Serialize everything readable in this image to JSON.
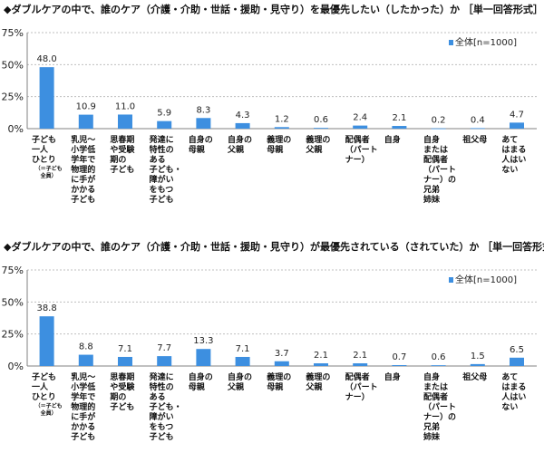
{
  "colors": {
    "bar": "#3d8fe0",
    "grid": "#bfbfbf",
    "axis": "#808080"
  },
  "chart_data": [
    {
      "type": "bar",
      "title": "◆ダブルケアの中で、誰のケア（介護・介助・世話・援助・見守り）を最優先したい（したかった）か ［単一回答形式］",
      "categories": [
        "子ども\n一人\nひとり",
        "乳児～\n小学低\n学年で\n物理的\nに手が\nかかる\n子ども",
        "思春期\nや受験\n期の\n子ども",
        "発達に\n特性の\nある\n子ども・\n障がい\nをもつ\n子ども",
        "自身の\n母親",
        "自身の\n父親",
        "義理の\n母親",
        "義理の\n父親",
        "配偶者\n（パート\nナー）",
        "自身",
        "自身\nまたは\n配偶者\n（パート\nナー）の\n兄弟\n姉妹",
        "祖父母",
        "あて\nはまる\n人はい\nない"
      ],
      "category_note": "（＝子ども\n全員）",
      "series": [
        {
          "name": "全体[n=1000]",
          "values": [
            48.0,
            10.9,
            11.0,
            5.9,
            8.3,
            4.3,
            1.2,
            0.6,
            2.4,
            2.1,
            0.2,
            0.4,
            4.7
          ]
        }
      ],
      "value_labels": [
        "48.0",
        "10.9",
        "11.0",
        "5.9",
        "8.3",
        "4.3",
        "1.2",
        "0.6",
        "2.4",
        "2.1",
        "0.2",
        "0.4",
        "4.7"
      ],
      "yticks": [
        "75%",
        "50%",
        "25%",
        "0%"
      ],
      "ylim": [
        0,
        75
      ],
      "grid": true,
      "legend": "top-right"
    },
    {
      "type": "bar",
      "title": "◆ダブルケアの中で、誰のケア（介護・介助・世話・援助・見守り）が最優先されている（されていた）か ［単一回答形式］",
      "categories": [
        "子ども\n一人\nひとり",
        "乳児～\n小学低\n学年で\n物理的\nに手が\nかかる\n子ども",
        "思春期\nや受験\n期の\n子ども",
        "発達に\n特性の\nある\n子ども・\n障がい\nをもつ\n子ども",
        "自身の\n母親",
        "自身の\n父親",
        "義理の\n母親",
        "義理の\n父親",
        "配偶者\n（パート\nナー）",
        "自身",
        "自身\nまたは\n配偶者\n（パート\nナー）の\n兄弟\n姉妹",
        "祖父母",
        "あて\nはまる\n人はい\nない"
      ],
      "category_note": "（＝子ども\n全員）",
      "series": [
        {
          "name": "全体[n=1000]",
          "values": [
            38.8,
            8.8,
            7.1,
            7.7,
            13.3,
            7.1,
            3.7,
            2.1,
            2.1,
            0.7,
            0.6,
            1.5,
            6.5
          ]
        }
      ],
      "value_labels": [
        "38.8",
        "8.8",
        "7.1",
        "7.7",
        "13.3",
        "7.1",
        "3.7",
        "2.1",
        "2.1",
        "0.7",
        "0.6",
        "1.5",
        "6.5"
      ],
      "yticks": [
        "75%",
        "50%",
        "25%",
        "0%"
      ],
      "ylim": [
        0,
        75
      ],
      "grid": true,
      "legend": "top-right"
    }
  ]
}
